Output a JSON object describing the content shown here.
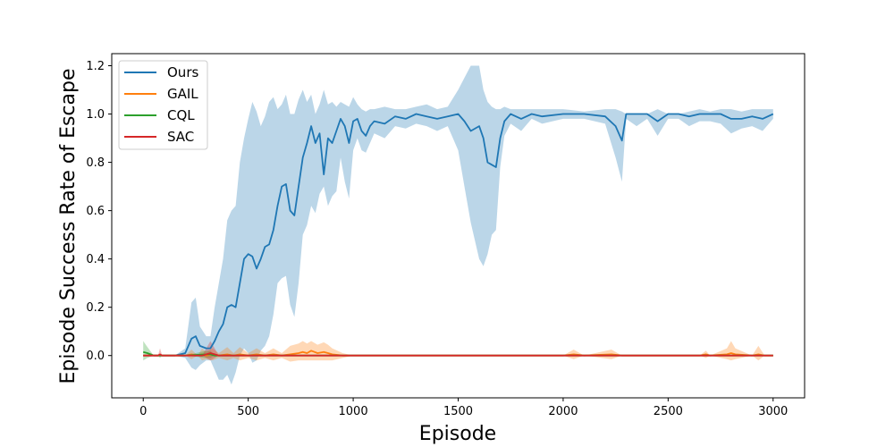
{
  "chart_data": {
    "type": "line",
    "title": "",
    "xlabel": "Episode",
    "ylabel": "Episode Success Rate of Escape",
    "xlim": [
      -150,
      3150
    ],
    "ylim": [
      -0.175,
      1.25
    ],
    "xticks": [
      0,
      500,
      1000,
      1500,
      2000,
      2500,
      3000
    ],
    "yticks": [
      0.0,
      0.2,
      0.4,
      0.6,
      0.8,
      1.0,
      1.2
    ],
    "xtick_labels": [
      "0",
      "500",
      "1000",
      "1500",
      "2000",
      "2500",
      "3000"
    ],
    "ytick_labels": [
      "0.0",
      "0.2",
      "0.4",
      "0.6",
      "0.8",
      "1.0",
      "1.2"
    ],
    "grid": false,
    "legend_position": "top-left",
    "series": [
      {
        "name": "Ours",
        "color": "#1f77b4",
        "band_opacity": 0.3,
        "x": [
          0,
          150,
          200,
          230,
          250,
          270,
          300,
          320,
          340,
          360,
          380,
          400,
          420,
          440,
          460,
          480,
          500,
          520,
          540,
          560,
          580,
          600,
          620,
          640,
          660,
          680,
          700,
          720,
          740,
          760,
          780,
          800,
          820,
          840,
          860,
          880,
          900,
          920,
          940,
          960,
          980,
          1000,
          1020,
          1040,
          1060,
          1080,
          1100,
          1150,
          1200,
          1250,
          1300,
          1350,
          1400,
          1450,
          1500,
          1530,
          1560,
          1600,
          1620,
          1640,
          1660,
          1680,
          1700,
          1720,
          1750,
          1800,
          1850,
          1900,
          2000,
          2100,
          2200,
          2250,
          2280,
          2300,
          2350,
          2400,
          2450,
          2500,
          2550,
          2600,
          2650,
          2700,
          2750,
          2800,
          2850,
          2900,
          2950,
          3000
        ],
        "y": [
          0,
          0,
          0.01,
          0.07,
          0.08,
          0.04,
          0.03,
          0.03,
          0.06,
          0.1,
          0.13,
          0.2,
          0.21,
          0.2,
          0.3,
          0.4,
          0.42,
          0.41,
          0.36,
          0.4,
          0.45,
          0.46,
          0.52,
          0.62,
          0.7,
          0.71,
          0.6,
          0.58,
          0.7,
          0.82,
          0.88,
          0.95,
          0.88,
          0.92,
          0.75,
          0.9,
          0.88,
          0.93,
          0.98,
          0.95,
          0.88,
          0.97,
          0.98,
          0.93,
          0.91,
          0.95,
          0.97,
          0.96,
          0.99,
          0.98,
          1.0,
          0.99,
          0.98,
          0.99,
          1.0,
          0.97,
          0.93,
          0.95,
          0.9,
          0.8,
          0.79,
          0.78,
          0.9,
          0.97,
          1.0,
          0.98,
          1.0,
          0.99,
          1.0,
          1.0,
          0.99,
          0.95,
          0.89,
          1.0,
          1.0,
          1.0,
          0.97,
          1.0,
          1.0,
          0.99,
          1.0,
          1.0,
          1.0,
          0.98,
          0.98,
          0.99,
          0.98,
          1.0
        ],
        "upper": [
          0,
          0,
          0.03,
          0.22,
          0.24,
          0.12,
          0.08,
          0.08,
          0.2,
          0.3,
          0.4,
          0.56,
          0.6,
          0.62,
          0.8,
          0.9,
          0.98,
          1.05,
          1.01,
          0.95,
          0.99,
          1.05,
          1.07,
          1.02,
          1.04,
          1.08,
          1.0,
          1.0,
          1.06,
          1.1,
          1.05,
          1.08,
          1.0,
          1.04,
          1.1,
          1.04,
          1.05,
          1.03,
          1.05,
          1.04,
          1.03,
          1.07,
          1.04,
          1.02,
          1.01,
          1.02,
          1.02,
          1.03,
          1.02,
          1.02,
          1.03,
          1.04,
          1.02,
          1.03,
          1.1,
          1.15,
          1.2,
          1.2,
          1.1,
          1.05,
          1.03,
          1.02,
          1.02,
          1.03,
          1.02,
          1.02,
          1.02,
          1.02,
          1.02,
          1.01,
          1.02,
          1.02,
          1.01,
          1.0,
          1.0,
          1.0,
          1.02,
          1.0,
          1.0,
          1.01,
          1.02,
          1.01,
          1.02,
          1.02,
          1.01,
          1.02,
          1.02,
          1.02
        ],
        "lower": [
          0,
          0,
          -0.01,
          -0.05,
          -0.06,
          -0.04,
          -0.02,
          -0.02,
          -0.06,
          -0.1,
          -0.1,
          -0.08,
          -0.12,
          -0.07,
          0.0,
          0.03,
          0.01,
          -0.03,
          -0.02,
          0.02,
          0.04,
          0.08,
          0.17,
          0.3,
          0.32,
          0.33,
          0.21,
          0.16,
          0.3,
          0.5,
          0.54,
          0.62,
          0.59,
          0.67,
          0.7,
          0.62,
          0.66,
          0.68,
          0.82,
          0.72,
          0.65,
          0.85,
          0.9,
          0.85,
          0.84,
          0.88,
          0.92,
          0.9,
          0.95,
          0.94,
          0.96,
          0.95,
          0.93,
          0.95,
          0.85,
          0.7,
          0.55,
          0.4,
          0.37,
          0.42,
          0.5,
          0.52,
          0.78,
          0.91,
          0.96,
          0.93,
          0.98,
          0.96,
          0.98,
          0.98,
          0.96,
          0.82,
          0.72,
          0.98,
          0.95,
          0.98,
          0.91,
          0.98,
          0.98,
          0.95,
          0.97,
          0.97,
          0.96,
          0.92,
          0.94,
          0.95,
          0.93,
          0.98
        ]
      },
      {
        "name": "GAIL",
        "color": "#ff7f0e",
        "band_opacity": 0.3,
        "x": [
          0,
          200,
          230,
          260,
          280,
          300,
          330,
          360,
          400,
          430,
          460,
          500,
          540,
          580,
          620,
          660,
          700,
          740,
          760,
          780,
          800,
          830,
          860,
          880,
          900,
          950,
          1000,
          2000,
          2050,
          2100,
          2230,
          2280,
          2300,
          2650,
          2680,
          2700,
          2780,
          2800,
          2820,
          2900,
          2930,
          2960,
          3000
        ],
        "y": [
          0,
          0,
          0.005,
          0,
          0.005,
          0,
          0.005,
          0,
          0.005,
          0,
          0.005,
          0,
          0.005,
          0,
          0.005,
          0,
          0.005,
          0.01,
          0.015,
          0.01,
          0.02,
          0.01,
          0.015,
          0.01,
          0.005,
          0,
          0,
          0,
          0.005,
          0,
          0.005,
          0,
          0,
          0,
          0.005,
          0,
          0.005,
          0.01,
          0.005,
          0,
          0.005,
          0,
          0
        ],
        "upper": [
          0,
          0,
          0.025,
          0,
          0.03,
          0.015,
          0.03,
          0.01,
          0.035,
          0.01,
          0.035,
          0.01,
          0.03,
          0.01,
          0.03,
          0.01,
          0.04,
          0.05,
          0.06,
          0.05,
          0.06,
          0.045,
          0.055,
          0.045,
          0.03,
          0.01,
          0,
          0,
          0.025,
          0,
          0.025,
          0,
          0,
          0,
          0.02,
          0,
          0.03,
          0.06,
          0.03,
          0,
          0.04,
          0,
          0
        ],
        "lower": [
          0,
          0,
          -0.015,
          0,
          -0.02,
          -0.015,
          -0.02,
          -0.01,
          -0.02,
          -0.01,
          -0.02,
          -0.01,
          -0.02,
          -0.01,
          -0.02,
          -0.01,
          -0.025,
          -0.02,
          -0.02,
          -0.02,
          -0.02,
          -0.02,
          -0.02,
          -0.02,
          -0.02,
          -0.01,
          0,
          0,
          -0.015,
          0,
          -0.015,
          0,
          0,
          0,
          -0.01,
          0,
          -0.015,
          -0.02,
          -0.015,
          0,
          -0.02,
          0,
          0
        ]
      },
      {
        "name": "CQL",
        "color": "#2ca02c",
        "band_opacity": 0.3,
        "x": [
          0,
          20,
          50,
          80,
          200,
          300,
          320,
          340,
          400,
          3000
        ],
        "y": [
          0.015,
          0.01,
          0,
          0,
          0,
          0.005,
          0.005,
          0,
          0,
          0
        ],
        "upper": [
          0.06,
          0.035,
          0,
          0,
          0,
          0.02,
          0.02,
          0,
          0,
          0
        ],
        "lower": [
          -0.02,
          -0.01,
          0,
          0,
          0,
          -0.01,
          -0.01,
          0,
          0,
          0
        ],
        "band_color": "#2ca02c"
      },
      {
        "name": "SAC",
        "color": "#d62728",
        "band_opacity": 0.3,
        "x": [
          0,
          70,
          80,
          90,
          280,
          300,
          320,
          340,
          360,
          380,
          3000
        ],
        "y": [
          0,
          0,
          0.005,
          0,
          0,
          0.005,
          0.01,
          0.005,
          0,
          0,
          0
        ],
        "upper": [
          0,
          0,
          0.03,
          0,
          0,
          0.03,
          0.06,
          0.03,
          0,
          0,
          0
        ],
        "lower": [
          0,
          0,
          -0.01,
          0,
          0,
          -0.01,
          -0.02,
          -0.01,
          0,
          0,
          0
        ]
      }
    ]
  }
}
